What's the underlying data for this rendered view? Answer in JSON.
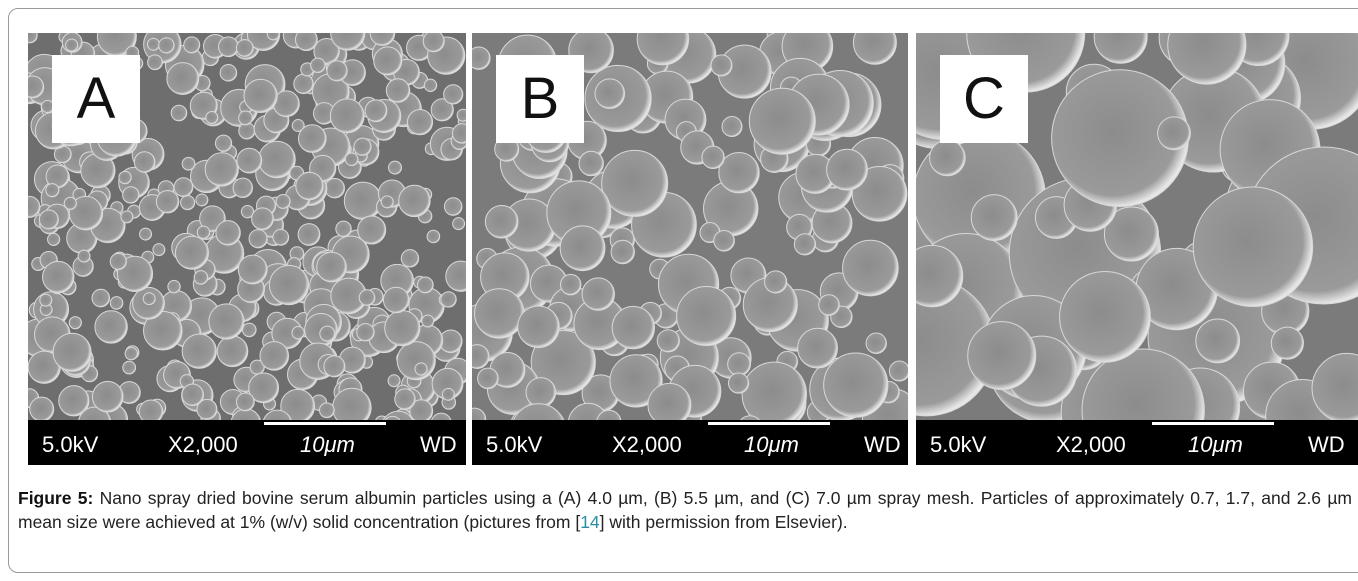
{
  "figure": {
    "panels": [
      {
        "label": "A",
        "voltage": "5.0kV",
        "magnification": "X2,000",
        "scale": "10μm",
        "wd": "WD"
      },
      {
        "label": "B",
        "voltage": "5.0kV",
        "magnification": "X2,000",
        "scale": "10μm",
        "wd": "WD"
      },
      {
        "label": "C",
        "voltage": "5.0kV",
        "magnification": "X2,000",
        "scale": "10μm",
        "wd": "WD"
      }
    ],
    "caption": {
      "label": "Figure 5:",
      "text_before": " Nano spray dried bovine serum albumin particles using a (A) 4.0 µm, (B) 5.5 µm, and (C) 7.0 µm spray mesh. Particles of approximately 0.7, 1.7, and 2.6 µm mean size were achieved at 1% (w/v) solid concentration (pictures from [",
      "ref": "14",
      "text_after": "] with permission from Elsevier)."
    }
  }
}
